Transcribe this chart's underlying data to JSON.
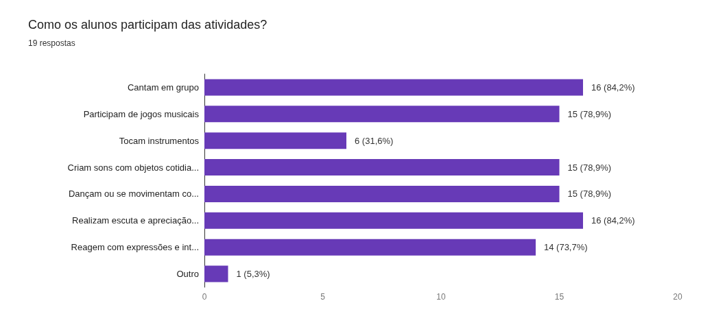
{
  "chart_data": {
    "type": "bar",
    "orientation": "horizontal",
    "title": "Como os alunos participam das atividades?",
    "subtitle": "19 respostas",
    "categories": [
      "Cantam em grupo",
      "Participam de jogos musicais",
      "Tocam instrumentos",
      "Criam sons com objetos cotidia...",
      "Dançam ou se movimentam co...",
      "Realizam escuta e apreciação...",
      "Reagem com expressões e int...",
      "Outro"
    ],
    "values": [
      16,
      15,
      6,
      15,
      15,
      16,
      14,
      1
    ],
    "value_labels": [
      "16 (84,2%)",
      "15 (78,9%)",
      "6 (31,6%)",
      "15 (78,9%)",
      "15 (78,9%)",
      "16 (84,2%)",
      "14 (73,7%)",
      "1 (5,3%)"
    ],
    "color": "#673ab7",
    "xlim": [
      0,
      20
    ],
    "xticks": [
      0,
      5,
      10,
      15,
      20
    ],
    "grid": false
  }
}
